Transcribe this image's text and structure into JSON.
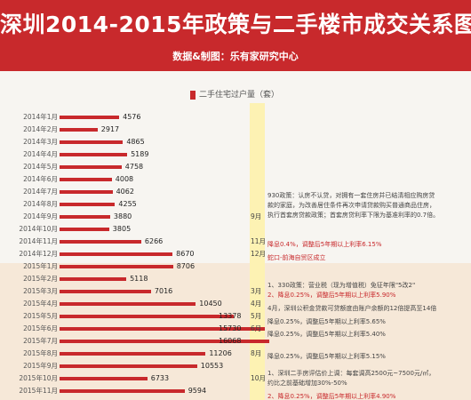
{
  "header": {
    "title": "深圳2014-2015年政策与二手楼市成交关系图",
    "subtitle": "数据&制图：乐有家研究中心"
  },
  "colors": {
    "header_bg": "#c8292c",
    "bar": "#c8292c",
    "policy_column": "#fdf2b3",
    "band_2015": "#f6e8d8"
  },
  "chart_data": {
    "type": "bar",
    "orientation": "horizontal",
    "legend": "二手住宅过户量（套）",
    "legend_placement": "top",
    "categories": [
      "2014年1月",
      "2014年2月",
      "2014年3月",
      "2014年4月",
      "2014年5月",
      "2014年6月",
      "2014年7月",
      "2014年8月",
      "2014年9月",
      "2014年10月",
      "2014年11月",
      "2014年12月",
      "2015年1月",
      "2015年2月",
      "2015年3月",
      "2015年4月",
      "2015年5月",
      "2015年6月",
      "2015年7月",
      "2015年8月",
      "2015年9月",
      "2015年10月",
      "2015年11月"
    ],
    "series": [
      {
        "name": "二手住宅过户量（套）",
        "values": [
          4576,
          2917,
          4865,
          5189,
          4758,
          4008,
          4062,
          4255,
          3880,
          3805,
          6266,
          8670,
          8706,
          5118,
          7016,
          10450,
          13378,
          15730,
          16068,
          11206,
          10553,
          6733,
          9594
        ]
      }
    ],
    "xlim": [
      0,
      16500
    ],
    "grid": false
  },
  "policy_months": [
    {
      "label": "9月",
      "row": 8
    },
    {
      "label": "11月",
      "row": 10
    },
    {
      "label": "12月",
      "row": 11
    },
    {
      "label": "3月",
      "row": 14
    },
    {
      "label": "4月",
      "row": 15
    },
    {
      "label": "5月",
      "row": 16
    },
    {
      "label": "6月",
      "row": 17
    },
    {
      "label": "8月",
      "row": 19
    },
    {
      "label": "10月",
      "row": 21
    }
  ],
  "annotations": [
    {
      "text": "930政策：认房不认贷，对拥有一套住房并已结清相应购房贷",
      "red": false
    },
    {
      "text": "款的家庭，为改善居住条件再次申请贷款购买普通商品住房，",
      "red": false
    },
    {
      "text": "执行首套房贷款政策；首套房贷利率下限为基准利率的0.7倍。",
      "red": false
    },
    {
      "text": "降息0.4%，调整后5年期以上利率6.15%",
      "red": true
    },
    {
      "text": "蛇口-前海自贸区成立",
      "red": true
    },
    {
      "text": "1、330政策：营业税（现为增值税）免征年限\"5改2\"",
      "red": false
    },
    {
      "text": "2、降息0.25%，调整后5年期以上利率5.90%",
      "red": true
    },
    {
      "text": "4月，深圳公积金贷款可贷额度由账户余额的12倍提高至14倍",
      "red": false
    },
    {
      "text": "降息0.25%，调整后5年期以上利率5.65%",
      "red": false
    },
    {
      "text": "降息0.25%，调整后5年期以上利率5.40%",
      "red": false
    },
    {
      "text": "降息0.25%，调整后5年期以上利率5.15%",
      "red": false
    },
    {
      "text": "1、深圳二手房评估价上调：每套调高2500元~7500元/㎡，",
      "red": false
    },
    {
      "text": "约比之前基础增加30%-50%",
      "red": false
    },
    {
      "text": "2、降息0.25%，调整后5年期以上利率4.90%",
      "red": true
    }
  ]
}
